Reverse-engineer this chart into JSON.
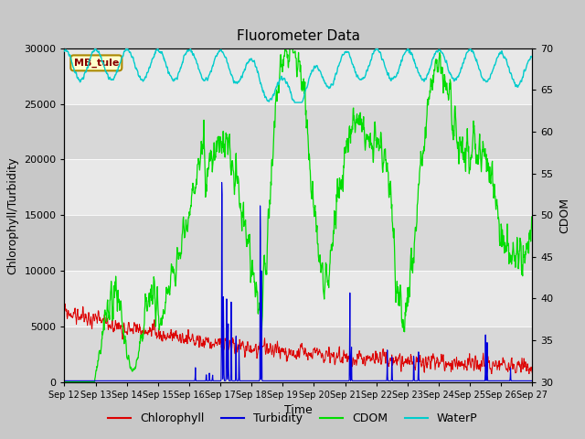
{
  "title": "Fluorometer Data",
  "xlabel": "Time",
  "ylabel_left": "Chlorophyll/Turbidity",
  "ylabel_right": "CDOM",
  "x_tick_labels": [
    "Sep 12",
    "Sep 13",
    "Sep 14",
    "Sep 15",
    "Sep 16",
    "Sep 17",
    "Sep 18",
    "Sep 19",
    "Sep 20",
    "Sep 21",
    "Sep 22",
    "Sep 23",
    "Sep 24",
    "Sep 25",
    "Sep 26",
    "Sep 27"
  ],
  "ylim_left": [
    0,
    30000
  ],
  "ylim_right": [
    30,
    70
  ],
  "yticks_left": [
    0,
    5000,
    10000,
    15000,
    20000,
    25000,
    30000
  ],
  "yticks_right": [
    30,
    35,
    40,
    45,
    50,
    55,
    60,
    65,
    70
  ],
  "fig_bg_color": "#c8c8c8",
  "plot_bg_color": "#c8c8c8",
  "band_colors": [
    "#d8d8d8",
    "#e8e8e8"
  ],
  "annotation_box_facecolor": "#ffffcc",
  "annotation_box_edgecolor": "#aa8800",
  "annotation_text": "MB_tule",
  "annotation_text_color": "#880000",
  "legend_entries": [
    "Chlorophyll",
    "Turbidity",
    "CDOM",
    "WaterP"
  ],
  "line_colors": [
    "#dd0000",
    "#0000dd",
    "#00dd00",
    "#00cccc"
  ],
  "title_fontsize": 11,
  "label_fontsize": 9,
  "tick_fontsize": 8
}
